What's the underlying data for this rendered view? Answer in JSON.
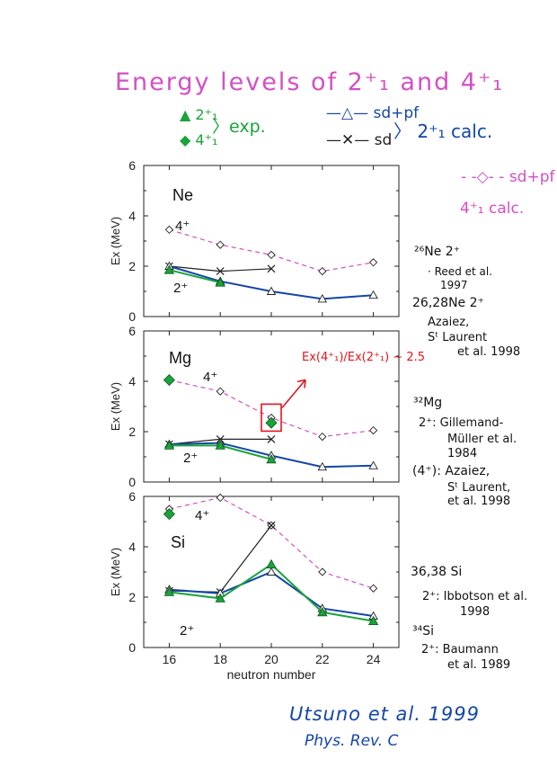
{
  "title": "Energy levels of 2⁺₁ and 4⁺₁",
  "legend": {
    "exp_2plus": "▲ 2⁺₁",
    "exp_4plus": "◆ 4⁺₁",
    "exp_label": "〉exp.",
    "sdpf": "—△— sd+pf",
    "sd": "—✕— sd",
    "calc_2plus": "〉 2⁺₁ calc.",
    "sdpf_4plus": "- -◇- - sd+pf",
    "calc_4plus": "4⁺₁ calc."
  },
  "references": {
    "ne26_label": "²⁶Ne 2⁺",
    "ne26_ref": "· Reed et al.",
    "ne26_year": "1997",
    "ne2628_label": "26,28Ne 2⁺",
    "ne2628_ref1": "Azaiez,",
    "ne2628_ref2": "Sᵗ Laurent",
    "ne2628_ref3": "et al. 1998",
    "mg32_label": "³²Mg",
    "mg32_ref1": "2⁺: Gillemand-",
    "mg32_ref2": "Müller et al.",
    "mg32_ref3": "1984",
    "mg32_4_ref1": "(4⁺): Azaiez,",
    "mg32_4_ref2": "Sᵗ Laurent,",
    "mg32_4_ref3": "et al. 1998",
    "si3638_label": "36,38 Si",
    "si3638_ref1": "2⁺: Ibbotson et al.",
    "si3638_ref2": "1998",
    "si34_label": "³⁴Si",
    "si34_ref1": "2⁺: Baumann",
    "si34_ref2": "et al. 1989"
  },
  "citation": {
    "authors": "Utsuno et al.   1999",
    "journal": "Phys. Rev. C"
  },
  "colors": {
    "magenta": "#d44fc4",
    "sdpf_blue": "#1446a8",
    "sd_black": "#222222",
    "exp_green": "#1aa33a",
    "red_annotation": "#e0161c"
  },
  "chart_data": {
    "type": "line",
    "x": [
      16,
      18,
      20,
      22,
      24
    ],
    "xlabel": "neutron number",
    "ylabel": "Ex (MeV)",
    "ylim": [
      0,
      6
    ],
    "yticks": [
      0,
      2,
      4,
      6
    ],
    "grid": false,
    "panels": [
      {
        "element": "Ne",
        "label_4": "4⁺",
        "label_2": "2⁺",
        "series": [
          {
            "name": "sd+pf 4⁺₁",
            "x": [
              16,
              18,
              20,
              22,
              24
            ],
            "values": [
              3.45,
              2.85,
              2.45,
              1.8,
              2.15
            ]
          },
          {
            "name": "sd 2⁺₁",
            "x": [
              16,
              18,
              20
            ],
            "values": [
              2.0,
              1.8,
              1.9
            ]
          },
          {
            "name": "sd+pf 2⁺₁",
            "x": [
              16,
              18,
              20,
              22,
              24
            ],
            "values": [
              2.0,
              1.4,
              1.0,
              0.7,
              0.85
            ]
          },
          {
            "name": "exp 2⁺₁",
            "x": [
              16,
              18
            ],
            "values": [
              1.85,
              1.35
            ]
          }
        ]
      },
      {
        "element": "Mg",
        "label_4": "4⁺",
        "label_2": "2⁺",
        "annotation": "Ex(4⁺₁)/Ex(2⁺₁) ~ 2.5",
        "series": [
          {
            "name": "sd+pf 4⁺₁",
            "x": [
              16,
              18,
              20,
              22,
              24
            ],
            "values": [
              4.05,
              3.6,
              2.55,
              1.8,
              2.05
            ]
          },
          {
            "name": "sd 2⁺₁",
            "x": [
              16,
              18,
              20
            ],
            "values": [
              1.5,
              1.7,
              1.7
            ]
          },
          {
            "name": "sd+pf 2⁺₁",
            "x": [
              16,
              18,
              20,
              22,
              24
            ],
            "values": [
              1.5,
              1.55,
              1.05,
              0.6,
              0.65
            ]
          },
          {
            "name": "exp 2⁺₁",
            "x": [
              16,
              18,
              20
            ],
            "values": [
              1.45,
              1.45,
              0.9
            ]
          },
          {
            "name": "exp 4⁺₁",
            "x": [
              16,
              20
            ],
            "values": [
              4.05,
              2.35
            ]
          }
        ]
      },
      {
        "element": "Si",
        "label_4": "4⁺",
        "label_2": "2⁺",
        "series": [
          {
            "name": "sd+pf 4⁺₁",
            "x": [
              16,
              18,
              20,
              22,
              24
            ],
            "values": [
              5.5,
              5.95,
              4.85,
              3.0,
              2.35
            ]
          },
          {
            "name": "sd 2⁺₁",
            "x": [
              16,
              18,
              20
            ],
            "values": [
              2.25,
              2.2,
              4.85
            ]
          },
          {
            "name": "sd+pf 2⁺₁",
            "x": [
              16,
              18,
              20,
              22,
              24
            ],
            "values": [
              2.3,
              2.15,
              3.0,
              1.55,
              1.25
            ]
          },
          {
            "name": "exp 2⁺₁",
            "x": [
              16,
              18,
              20,
              22,
              24
            ],
            "values": [
              2.2,
              1.95,
              3.3,
              1.4,
              1.05
            ]
          },
          {
            "name": "exp 4⁺₁",
            "x": [
              16
            ],
            "values": [
              5.3
            ]
          }
        ]
      }
    ]
  }
}
